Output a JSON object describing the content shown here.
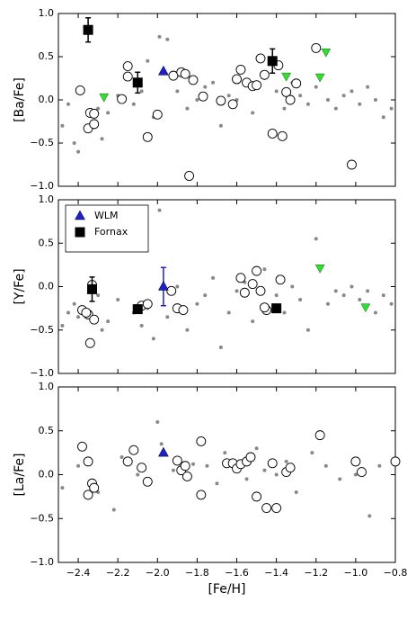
{
  "chart_data": [
    {
      "type": "scatter",
      "ylabel": "[Ba/Fe]",
      "xlim": [
        -2.5,
        -0.8
      ],
      "ylim": [
        -1,
        1
      ],
      "xticks": [
        -2.4,
        -2.2,
        -2.0,
        -1.8,
        -1.6,
        -1.4,
        -1.2,
        -1.0,
        -0.8
      ],
      "yticks": [
        {
          "value": -1,
          "label": "−1.0"
        },
        {
          "value": -0.5,
          "label": "−0.5"
        },
        {
          "value": 0,
          "label": "0.0"
        },
        {
          "value": 0.5,
          "label": "0.5"
        },
        {
          "value": 1,
          "label": "1.0"
        }
      ],
      "series": [
        {
          "marker": "dot",
          "color": "#888888",
          "x": [
            -2.48,
            -2.45,
            -2.42,
            -2.4,
            -2.3,
            -2.28,
            -2.25,
            -2.2,
            -2.12,
            -2.08,
            -2.05,
            -2.02,
            -1.99,
            -1.95,
            -1.9,
            -1.85,
            -1.8,
            -1.76,
            -1.72,
            -1.68,
            -1.64,
            -1.6,
            -1.56,
            -1.52,
            -1.46,
            -1.4,
            -1.36,
            -1.32,
            -1.28,
            -1.24,
            -1.2,
            -1.14,
            -1.1,
            -1.06,
            -1.02,
            -0.98,
            -0.94,
            -0.9,
            -0.86,
            -0.82
          ],
          "values": [
            -0.3,
            -0.05,
            -0.5,
            -0.6,
            -0.1,
            -0.45,
            -0.15,
            0.05,
            -0.05,
            0.1,
            0.45,
            -0.2,
            0.73,
            0.7,
            0.1,
            -0.1,
            0.0,
            0.15,
            0.2,
            -0.3,
            0.05,
            0.0,
            0.2,
            -0.15,
            0.25,
            0.1,
            -0.1,
            0.2,
            0.05,
            -0.05,
            0.15,
            0.0,
            -0.1,
            0.05,
            0.1,
            -0.05,
            0.15,
            0.0,
            -0.2,
            -0.1
          ]
        },
        {
          "marker": "circle",
          "color": "#000000",
          "x": [
            -2.39,
            -2.34,
            -2.32,
            -2.35,
            -2.32,
            -2.18,
            -2.15,
            -2.15,
            -2.05,
            -2.0,
            -1.92,
            -1.88,
            -1.86,
            -1.82,
            -1.84,
            -1.77,
            -1.68,
            -1.62,
            -1.6,
            -1.58,
            -1.55,
            -1.52,
            -1.5,
            -1.48,
            -1.46,
            -1.42,
            -1.39,
            -1.37,
            -1.35,
            -1.33,
            -1.3,
            -1.2,
            -1.02
          ],
          "values": [
            0.11,
            -0.15,
            -0.16,
            -0.33,
            -0.28,
            0.01,
            0.27,
            0.39,
            -0.43,
            -0.17,
            0.28,
            0.32,
            0.3,
            0.23,
            -0.88,
            0.04,
            -0.01,
            -0.05,
            0.24,
            0.35,
            0.2,
            0.16,
            0.17,
            0.48,
            0.29,
            -0.39,
            0.4,
            -0.42,
            0.09,
            0.0,
            0.19,
            0.6,
            -0.75
          ]
        },
        {
          "marker": "triangle-down",
          "color": "#33dd33",
          "x": [
            -2.27,
            -1.35,
            -1.18,
            -1.15
          ],
          "values": [
            0.03,
            0.27,
            0.26,
            0.55
          ]
        },
        {
          "name": "WLM",
          "marker": "triangle",
          "color": "#1f1fcc",
          "x": [
            -1.97
          ],
          "values": [
            0.33
          ]
        },
        {
          "name": "Fornax",
          "marker": "square",
          "color": "#000000",
          "x": [
            -2.35,
            -2.1,
            -1.42
          ],
          "values": [
            0.81,
            0.2,
            0.45
          ],
          "errors": [
            0.14,
            0.12,
            0.14
          ]
        }
      ]
    },
    {
      "type": "scatter",
      "ylabel": "[Y/Fe]",
      "xlim": [
        -2.5,
        -0.8
      ],
      "ylim": [
        -1,
        1
      ],
      "legend": "upper left",
      "xticks": [
        -2.4,
        -2.2,
        -2.0,
        -1.8,
        -1.6,
        -1.4,
        -1.2,
        -1.0,
        -0.8
      ],
      "yticks": [
        {
          "value": -1,
          "label": "−1.0"
        },
        {
          "value": -0.5,
          "label": "−0.5"
        },
        {
          "value": 0,
          "label": "0.0"
        },
        {
          "value": 0.5,
          "label": "0.5"
        },
        {
          "value": 1,
          "label": "1.0"
        }
      ],
      "series": [
        {
          "marker": "dot",
          "color": "#888888",
          "x": [
            -2.48,
            -2.45,
            -2.42,
            -2.4,
            -2.3,
            -2.28,
            -2.25,
            -2.2,
            -2.12,
            -2.08,
            -2.05,
            -2.02,
            -1.99,
            -1.95,
            -1.9,
            -1.85,
            -1.8,
            -1.76,
            -1.72,
            -1.68,
            -1.64,
            -1.6,
            -1.56,
            -1.52,
            -1.46,
            -1.4,
            -1.36,
            -1.32,
            -1.28,
            -1.24,
            -1.2,
            -1.14,
            -1.1,
            -1.06,
            -1.02,
            -0.98,
            -0.94,
            -0.9,
            -0.86,
            -0.82
          ],
          "values": [
            -0.45,
            -0.3,
            -0.2,
            -0.35,
            -0.1,
            -0.5,
            -0.4,
            -0.15,
            -0.3,
            -0.45,
            -0.25,
            -0.6,
            0.88,
            -0.35,
            0.0,
            -0.5,
            -0.2,
            -0.1,
            0.1,
            -0.7,
            -0.3,
            -0.05,
            0.05,
            -0.4,
            0.2,
            -0.1,
            -0.3,
            0.0,
            -0.15,
            -0.5,
            0.55,
            -0.2,
            -0.05,
            -0.1,
            0.0,
            -0.15,
            -0.05,
            -0.3,
            -0.1,
            -0.2
          ]
        },
        {
          "marker": "circle",
          "color": "#000000",
          "x": [
            -2.38,
            -2.35,
            -2.34,
            -2.32,
            -2.36,
            -2.33,
            -2.08,
            -2.05,
            -1.93,
            -1.9,
            -1.87,
            -1.58,
            -1.56,
            -1.52,
            -1.5,
            -1.48,
            -1.45,
            -1.46,
            -1.38
          ],
          "values": [
            -0.27,
            -0.32,
            -0.65,
            -0.38,
            -0.3,
            0.02,
            -0.22,
            -0.2,
            -0.05,
            -0.25,
            -0.27,
            0.1,
            -0.07,
            0.03,
            0.18,
            -0.05,
            -0.27,
            -0.24,
            0.08
          ]
        },
        {
          "marker": "triangle-down",
          "color": "#33dd33",
          "x": [
            -1.18,
            -0.95
          ],
          "values": [
            0.21,
            -0.24
          ]
        },
        {
          "name": "WLM",
          "marker": "triangle",
          "color": "#1f1fcc",
          "x": [
            -1.97
          ],
          "values": [
            0.0
          ],
          "errors": [
            0.22
          ]
        },
        {
          "name": "Fornax",
          "marker": "square",
          "color": "#000000",
          "x": [
            -2.33,
            -2.1,
            -1.4
          ],
          "values": [
            -0.03,
            -0.26,
            -0.25
          ],
          "errors": [
            0.14,
            0.0,
            0.0
          ]
        }
      ]
    },
    {
      "type": "scatter",
      "ylabel": "[La/Fe]",
      "xlabel": "[Fe/H]",
      "xlim": [
        -2.5,
        -0.8
      ],
      "ylim": [
        -1,
        1
      ],
      "xticks": [
        {
          "value": -2.4,
          "label": "−2.4"
        },
        {
          "value": -2.2,
          "label": "−2.2"
        },
        {
          "value": -2.0,
          "label": "−2.0"
        },
        {
          "value": -1.8,
          "label": "−1.8"
        },
        {
          "value": -1.6,
          "label": "−1.6"
        },
        {
          "value": -1.4,
          "label": "−1.4"
        },
        {
          "value": -1.2,
          "label": "−1.2"
        },
        {
          "value": -1.0,
          "label": "−1.0"
        },
        {
          "value": -0.8,
          "label": "−0.8"
        }
      ],
      "yticks": [
        {
          "value": -1,
          "label": "−1.0"
        },
        {
          "value": -0.5,
          "label": "−0.5"
        },
        {
          "value": 0,
          "label": "0.0"
        },
        {
          "value": 0.5,
          "label": "0.5"
        },
        {
          "value": 1,
          "label": "1.0"
        }
      ],
      "series": [
        {
          "marker": "dot",
          "color": "#888888",
          "x": [
            -2.48,
            -2.4,
            -2.3,
            -2.22,
            -2.18,
            -2.1,
            -2.0,
            -1.98,
            -1.92,
            -1.82,
            -1.75,
            -1.7,
            -1.66,
            -1.55,
            -1.5,
            -1.46,
            -1.4,
            -1.35,
            -1.3,
            -1.22,
            -1.15,
            -1.08,
            -1.0,
            -0.93,
            -0.88
          ],
          "values": [
            -0.15,
            0.1,
            -0.2,
            -0.4,
            0.2,
            0.0,
            0.6,
            0.35,
            0.05,
            0.12,
            0.1,
            -0.1,
            0.25,
            -0.05,
            0.3,
            0.05,
            0.0,
            0.15,
            -0.2,
            0.25,
            0.1,
            -0.05,
            0.0,
            -0.47,
            0.1
          ]
        },
        {
          "marker": "circle",
          "color": "#000000",
          "x": [
            -2.38,
            -2.35,
            -2.33,
            -2.35,
            -2.32,
            -2.15,
            -2.12,
            -2.08,
            -2.05,
            -1.9,
            -1.88,
            -1.86,
            -1.85,
            -1.78,
            -1.78,
            -1.65,
            -1.62,
            -1.6,
            -1.58,
            -1.55,
            -1.53,
            -1.5,
            -1.45,
            -1.42,
            -1.4,
            -1.35,
            -1.33,
            -1.18,
            -1.0,
            -0.97,
            -0.8
          ],
          "values": [
            0.32,
            0.15,
            -0.1,
            -0.23,
            -0.15,
            0.15,
            0.28,
            0.08,
            -0.08,
            0.16,
            0.05,
            0.1,
            -0.02,
            0.38,
            -0.23,
            0.13,
            0.13,
            0.07,
            0.12,
            0.15,
            0.2,
            -0.25,
            -0.38,
            0.13,
            -0.38,
            0.03,
            0.08,
            0.45,
            0.15,
            0.03,
            0.15
          ]
        },
        {
          "name": "WLM",
          "marker": "triangle",
          "color": "#1f1fcc",
          "x": [
            -1.97
          ],
          "values": [
            0.25
          ]
        }
      ]
    }
  ]
}
